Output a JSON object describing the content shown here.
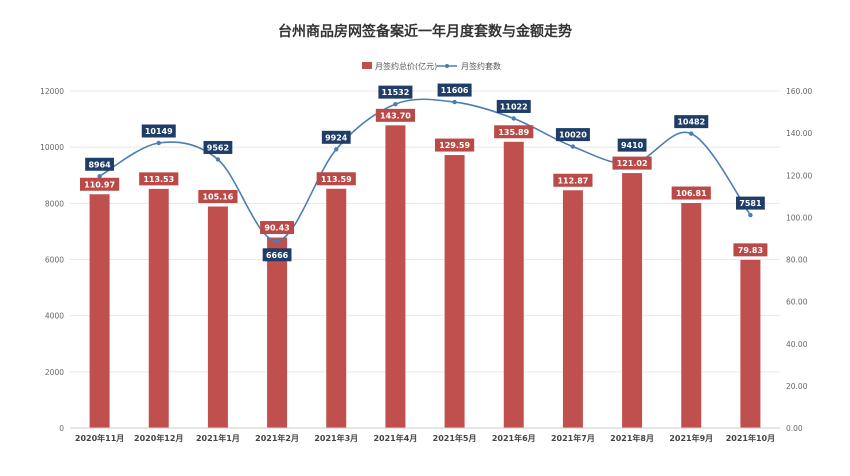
{
  "title": "台州商品房网签备案近一年月度套数与金额走势",
  "colors": {
    "bar": "#c0504d",
    "bar_label_bg": "#b94a48",
    "line": "#4a7eb5",
    "count_label_bg": "#1f3d66",
    "grid": "#e8e8e8"
  },
  "chart_data": {
    "type": "bar",
    "title": "台州商品房网签备案近一年月度套数与金额走势",
    "categories": [
      "2020年11月",
      "2020年12月",
      "2021年1月",
      "2021年2月",
      "2021年3月",
      "2021年4月",
      "2021年5月",
      "2021年6月",
      "2021年7月",
      "2021年8月",
      "2021年9月",
      "2021年10月"
    ],
    "series": [
      {
        "name": "月签约总价(亿元)",
        "type": "bar",
        "axis": "right",
        "values": [
          110.97,
          113.53,
          105.16,
          90.43,
          113.59,
          143.7,
          129.59,
          135.89,
          112.87,
          121.02,
          106.81,
          79.83
        ],
        "labels": [
          "110.97",
          "113.53",
          "105.16",
          "90.43",
          "113.59",
          "143.70",
          "129.59",
          "135.89",
          "112.87",
          "121.02",
          "106.81",
          "79.83"
        ]
      },
      {
        "name": "月签约套数",
        "type": "line",
        "axis": "left",
        "values": [
          8964,
          10149,
          9562,
          6666,
          9924,
          11532,
          11606,
          11022,
          10020,
          9410,
          10482,
          7581
        ],
        "labels": [
          "8964",
          "10149",
          "9562",
          "6666",
          "9924",
          "11532",
          "11606",
          "11022",
          "10020",
          "9410",
          "10482",
          "7581"
        ]
      }
    ],
    "left_axis": {
      "ylim": [
        0,
        12000
      ],
      "ticks": [
        "0",
        "2000",
        "4000",
        "6000",
        "8000",
        "10000",
        "12000"
      ]
    },
    "right_axis": {
      "ylim": [
        0,
        160
      ],
      "ticks": [
        "0.00",
        "20.00",
        "40.00",
        "60.00",
        "80.00",
        "100.00",
        "120.00",
        "140.00",
        "160.00"
      ]
    },
    "legend_position": "top-center",
    "grid": true
  }
}
